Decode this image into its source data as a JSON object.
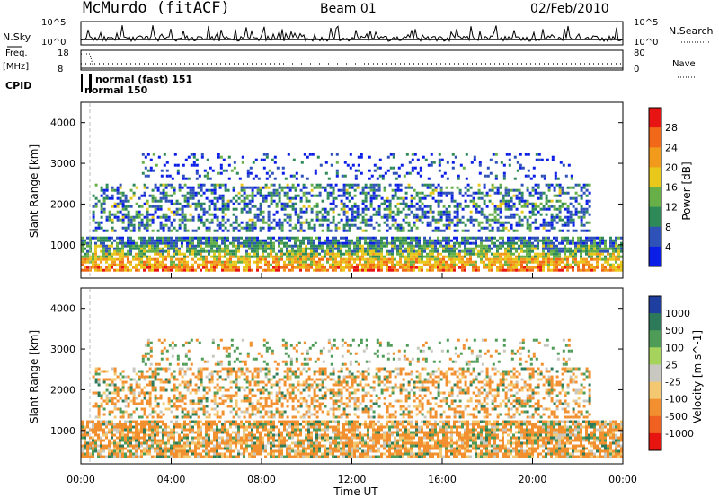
{
  "header": {
    "station": "McMurdo (fitACF)",
    "beam": "Beam 01",
    "date": "02/Feb/2010"
  },
  "summary_panels": {
    "nsky_label": "N.Sky",
    "nsearch_label": "N.Search",
    "nsky_ticks": [
      "10^5",
      "10^0"
    ],
    "nsearch_ticks": [
      "10^5",
      "10^0"
    ],
    "freq_label": "Freq.",
    "freq_unit": "[MHz]",
    "freq_ticks": [
      "18",
      "8"
    ],
    "nave_label": "Nave",
    "nave_ticks": [
      "80",
      "0"
    ],
    "cpid_label": "CPID",
    "cpid_annotations": [
      "normal (fast) 151",
      "normal 150"
    ]
  },
  "chart_data": [
    {
      "type": "heatmap",
      "name": "power",
      "ylabel": "Slant Range [km]",
      "yticks": [
        "1000",
        "2000",
        "3000",
        "4000"
      ],
      "ylim": [
        180,
        4500
      ],
      "xlim": [
        0,
        24
      ],
      "colorbar": {
        "label": "Power [dB]",
        "ticks": [
          "4",
          "8",
          "12",
          "16",
          "20",
          "24",
          "28"
        ],
        "colors": [
          "#0a1ee6",
          "#2e52b8",
          "#2f8a5a",
          "#67b048",
          "#e8c81a",
          "#f29a1c",
          "#f06818",
          "#e81414"
        ]
      },
      "bands": [
        {
          "t0": 0.0,
          "t1": 24.0,
          "r0": 350,
          "r1": 1200,
          "value": 22
        },
        {
          "t0": 0.5,
          "t1": 22.5,
          "r0": 1350,
          "r1": 2500,
          "value": 12
        },
        {
          "t0": 2.7,
          "t1": 21.7,
          "r0": 2600,
          "r1": 3250,
          "value": 9
        }
      ]
    },
    {
      "type": "heatmap",
      "name": "velocity",
      "ylabel": "Slant Range [km]",
      "yticks": [
        "1000",
        "2000",
        "3000",
        "4000"
      ],
      "ylim": [
        180,
        4500
      ],
      "xlim": [
        0,
        24
      ],
      "colorbar": {
        "label": "Velocity [m s^-1]",
        "ticks": [
          "1000",
          "500",
          "100",
          "25",
          "-25",
          "-100",
          "-500",
          "-1000"
        ],
        "colors": [
          "#1f3fa0",
          "#2d7a5a",
          "#4f9c58",
          "#a6d35c",
          "#c8c8c0",
          "#f3c870",
          "#f29030",
          "#f06020",
          "#e81410"
        ]
      },
      "bands": [
        {
          "t0": 0.0,
          "t1": 24.0,
          "r0": 350,
          "r1": 1250,
          "value": -100
        },
        {
          "t0": 0.5,
          "t1": 22.5,
          "r0": 1350,
          "r1": 2550,
          "value": -100
        },
        {
          "t0": 2.7,
          "t1": 21.7,
          "r0": 2600,
          "r1": 3250,
          "value": 100
        }
      ]
    }
  ],
  "xaxis": {
    "label": "Time UT",
    "ticks": [
      "00:00",
      "04:00",
      "08:00",
      "12:00",
      "16:00",
      "20:00",
      "00:00"
    ]
  }
}
